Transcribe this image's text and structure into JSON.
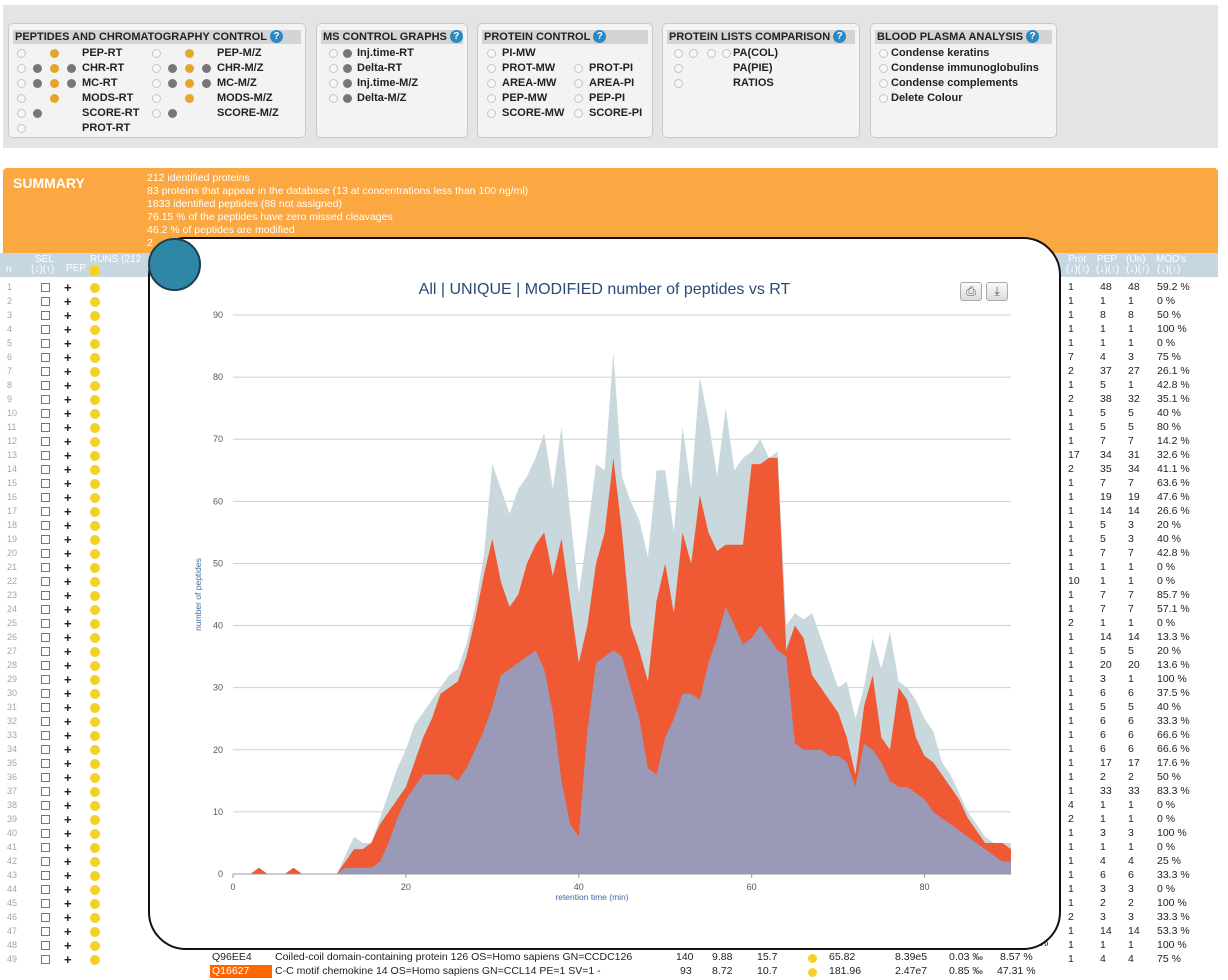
{
  "panels": {
    "pep_chrom": {
      "title": "PEPTIDES AND CHROMATOGRAPHY CONTROL",
      "left_labels": [
        "PEP-RT",
        "CHR-RT",
        "MC-RT",
        "MODS-RT",
        "SCORE-RT",
        "PROT-RT"
      ],
      "right_labels": [
        "PEP-M/Z",
        "CHR-M/Z",
        "MC-M/Z",
        "MODS-M/Z",
        "SCORE-M/Z"
      ]
    },
    "ms_control": {
      "title": "MS CONTROL GRAPHS",
      "labels": [
        "Inj.time-RT",
        "Delta-RT",
        "Inj.time-M/Z",
        "Delta-M/Z"
      ]
    },
    "protein_control": {
      "title": "PROTEIN CONTROL",
      "left_labels": [
        "PI-MW",
        "PROT-MW",
        "AREA-MW",
        "PEP-MW",
        "SCORE-MW"
      ],
      "right_labels": [
        "PROT-PI",
        "AREA-PI",
        "PEP-PI",
        "SCORE-PI"
      ]
    },
    "lists_comparison": {
      "title": "PROTEIN LISTS COMPARISON",
      "labels": [
        "PA(COL)",
        "PA(PIE)",
        "RATIOS"
      ]
    },
    "blood_plasma": {
      "title": "BLOOD PLASMA ANALYSIS",
      "labels": [
        "Condense keratins",
        "Condense immunoglobulins",
        "Condense complements",
        "Delete Colour"
      ]
    }
  },
  "summary": {
    "title": "SUMMARY",
    "lines": [
      "212 identified proteins",
      "83 proteins that appear in the database (13 at concentrations less than 100 ng/ml)",
      "1833 identified peptides (88 not assigned)",
      "76.15 % of the peptides have zero missed cleavages",
      "46.2 % of peptides are modified",
      "2"
    ]
  },
  "header": {
    "n": "n",
    "sel": "SEL",
    "sel_sort": "(↓)(↑)",
    "pep": "PEP",
    "runs": "RUNS (212",
    "prot": "Prot",
    "pep2": "PEP",
    "un": "(Un)",
    "mods": "MOD's",
    "sort": "(↓)(↑)",
    "sort_mods": "(↓)(↑)"
  },
  "rows": [
    {
      "n": "1",
      "prot": "1",
      "pep": "48",
      "un": "48",
      "mods": "59.2 %"
    },
    {
      "n": "2",
      "prot": "1",
      "pep": "1",
      "un": "1",
      "mods": "0 %"
    },
    {
      "n": "3",
      "prot": "1",
      "pep": "8",
      "un": "8",
      "mods": "50 %"
    },
    {
      "n": "4",
      "prot": "1",
      "pep": "1",
      "un": "1",
      "mods": "100 %"
    },
    {
      "n": "5",
      "prot": "1",
      "pep": "1",
      "un": "1",
      "mods": "0 %"
    },
    {
      "n": "6",
      "prot": "7",
      "pep": "4",
      "un": "3",
      "mods": "75 %"
    },
    {
      "n": "7",
      "prot": "2",
      "pep": "37",
      "un": "27",
      "mods": "26.1 %"
    },
    {
      "n": "8",
      "prot": "1",
      "pep": "5",
      "un": "1",
      "mods": "42.8 %"
    },
    {
      "n": "9",
      "prot": "2",
      "pep": "38",
      "un": "32",
      "mods": "35.1 %"
    },
    {
      "n": "10",
      "prot": "1",
      "pep": "5",
      "un": "5",
      "mods": "40 %"
    },
    {
      "n": "11",
      "prot": "1",
      "pep": "5",
      "un": "5",
      "mods": "80 %"
    },
    {
      "n": "12",
      "prot": "1",
      "pep": "7",
      "un": "7",
      "mods": "14.2 %"
    },
    {
      "n": "13",
      "prot": "17",
      "pep": "34",
      "un": "31",
      "mods": "32.6 %"
    },
    {
      "n": "14",
      "prot": "2",
      "pep": "35",
      "un": "34",
      "mods": "41.1 %"
    },
    {
      "n": "15",
      "prot": "1",
      "pep": "7",
      "un": "7",
      "mods": "63.6 %"
    },
    {
      "n": "16",
      "prot": "1",
      "pep": "19",
      "un": "19",
      "mods": "47.6 %"
    },
    {
      "n": "17",
      "prot": "1",
      "pep": "14",
      "un": "14",
      "mods": "26.6 %"
    },
    {
      "n": "18",
      "prot": "1",
      "pep": "5",
      "un": "3",
      "mods": "20 %"
    },
    {
      "n": "19",
      "prot": "1",
      "pep": "5",
      "un": "3",
      "mods": "40 %"
    },
    {
      "n": "20",
      "prot": "1",
      "pep": "7",
      "un": "7",
      "mods": "42.8 %"
    },
    {
      "n": "21",
      "prot": "1",
      "pep": "1",
      "un": "1",
      "mods": "0 %"
    },
    {
      "n": "22",
      "prot": "10",
      "pep": "1",
      "un": "1",
      "mods": "0 %"
    },
    {
      "n": "23",
      "prot": "1",
      "pep": "7",
      "un": "7",
      "mods": "85.7 %"
    },
    {
      "n": "24",
      "prot": "1",
      "pep": "7",
      "un": "7",
      "mods": "57.1 %"
    },
    {
      "n": "25",
      "prot": "2",
      "pep": "1",
      "un": "1",
      "mods": "0 %"
    },
    {
      "n": "26",
      "prot": "1",
      "pep": "14",
      "un": "14",
      "mods": "13.3 %"
    },
    {
      "n": "27",
      "prot": "1",
      "pep": "5",
      "un": "5",
      "mods": "20 %"
    },
    {
      "n": "28",
      "prot": "1",
      "pep": "20",
      "un": "20",
      "mods": "13.6 %"
    },
    {
      "n": "29",
      "prot": "1",
      "pep": "3",
      "un": "1",
      "mods": "100 %"
    },
    {
      "n": "30",
      "prot": "1",
      "pep": "6",
      "un": "6",
      "mods": "37.5 %"
    },
    {
      "n": "31",
      "prot": "1",
      "pep": "5",
      "un": "5",
      "mods": "40 %"
    },
    {
      "n": "32",
      "prot": "1",
      "pep": "6",
      "un": "6",
      "mods": "33.3 %"
    },
    {
      "n": "33",
      "prot": "1",
      "pep": "6",
      "un": "6",
      "mods": "66.6 %"
    },
    {
      "n": "34",
      "prot": "1",
      "pep": "6",
      "un": "6",
      "mods": "66.6 %"
    },
    {
      "n": "35",
      "prot": "1",
      "pep": "17",
      "un": "17",
      "mods": "17.6 %"
    },
    {
      "n": "36",
      "prot": "1",
      "pep": "2",
      "un": "2",
      "mods": "50 %"
    },
    {
      "n": "37",
      "prot": "1",
      "pep": "33",
      "un": "33",
      "mods": "83.3 %"
    },
    {
      "n": "38",
      "prot": "4",
      "pep": "1",
      "un": "1",
      "mods": "0 %"
    },
    {
      "n": "39",
      "prot": "2",
      "pep": "1",
      "un": "1",
      "mods": "0 %"
    },
    {
      "n": "40",
      "prot": "1",
      "pep": "3",
      "un": "3",
      "mods": "100 %"
    },
    {
      "n": "41",
      "prot": "1",
      "pep": "1",
      "un": "1",
      "mods": "0 %"
    },
    {
      "n": "42",
      "prot": "1",
      "pep": "4",
      "un": "4",
      "mods": "25 %"
    },
    {
      "n": "43",
      "prot": "1",
      "pep": "6",
      "un": "6",
      "mods": "33.3 %"
    },
    {
      "n": "44",
      "prot": "1",
      "pep": "3",
      "un": "3",
      "mods": "0 %"
    },
    {
      "n": "45",
      "prot": "1",
      "pep": "2",
      "un": "2",
      "mods": "100 %"
    },
    {
      "n": "46",
      "prot": "2",
      "pep": "3",
      "un": "3",
      "mods": "33.3 %"
    },
    {
      "n": "47",
      "prot": "1",
      "pep": "14",
      "un": "14",
      "mods": "53.3 %"
    },
    {
      "n": "48",
      "prot": "1",
      "pep": "1",
      "un": "1",
      "mods": "100 %"
    },
    {
      "n": "49",
      "prot": "1",
      "pep": "4",
      "un": "4",
      "mods": "75 %"
    }
  ],
  "bottom_rows": [
    {
      "acc": "Q96EE4",
      "desc": "Coiled-coil domain-containing protein 126 OS=Homo sapiens GN=CCDC126",
      "c1": "140",
      "c2": "9.88",
      "c3": "15.7",
      "c4": "65.82",
      "c5": "8.39e5",
      "c6": "0.03 ‰",
      "c7": "8.57 %",
      "c8": "%"
    },
    {
      "acc": "Q16627",
      "desc": "C-C motif chemokine 14 OS=Homo sapiens GN=CCL14 PE=1 SV=1 -",
      "c1": "93",
      "c2": "8.72",
      "c3": "10.7",
      "c4": "181.96",
      "c5": "2.47e7",
      "c6": "0.85 ‰",
      "c7": "47.31 %"
    }
  ],
  "highlight_color": "#ff6600",
  "chart": {
    "title": "All | UNIQUE | MODIFIED number of peptides vs RT",
    "print_icon": "print-icon",
    "download_icon": "download-icon"
  },
  "chart_data": {
    "type": "area",
    "title": "All | UNIQUE | MODIFIED number of peptides vs RT",
    "xlabel": "retention time (min)",
    "ylabel": "number of peptides",
    "xlim": [
      0,
      90
    ],
    "ylim": [
      0,
      90
    ],
    "xticks": [
      0,
      20,
      40,
      60,
      80
    ],
    "yticks": [
      0,
      10,
      20,
      30,
      40,
      50,
      60,
      70,
      80,
      90
    ],
    "x": [
      0,
      1,
      2,
      3,
      4,
      5,
      6,
      7,
      8,
      9,
      10,
      11,
      12,
      13,
      14,
      15,
      16,
      17,
      18,
      19,
      20,
      21,
      22,
      23,
      24,
      25,
      26,
      27,
      28,
      29,
      30,
      31,
      32,
      33,
      34,
      35,
      36,
      37,
      38,
      39,
      40,
      41,
      42,
      43,
      44,
      45,
      46,
      47,
      48,
      49,
      50,
      51,
      52,
      53,
      54,
      55,
      56,
      57,
      58,
      59,
      60,
      61,
      62,
      63,
      64,
      65,
      66,
      67,
      68,
      69,
      70,
      71,
      72,
      73,
      74,
      75,
      76,
      77,
      78,
      79,
      80,
      81,
      82,
      83,
      84,
      85,
      86,
      87,
      88,
      89,
      90
    ],
    "series": [
      {
        "name": "All",
        "color": "#c9d8dc",
        "values": [
          0,
          0,
          0,
          1,
          0,
          0,
          0,
          1,
          0,
          0,
          0,
          0,
          0,
          3,
          6,
          5,
          5,
          9,
          13,
          17,
          20,
          24,
          26,
          28,
          30,
          32,
          33,
          37,
          43,
          51,
          66,
          62,
          58,
          62,
          64,
          67,
          71,
          62,
          72,
          58,
          45,
          55,
          66,
          65,
          84,
          64,
          60,
          57,
          51,
          65,
          65,
          55,
          72,
          62,
          80,
          73,
          64,
          75,
          65,
          67,
          68,
          70,
          67,
          68,
          40,
          42,
          41,
          42,
          38,
          34,
          30,
          31,
          25,
          30,
          38,
          33,
          39,
          31,
          30,
          28,
          25,
          23,
          18,
          16,
          13,
          10,
          8,
          6,
          5,
          5,
          5
        ]
      },
      {
        "name": "UNIQUE",
        "color": "#ef5a35",
        "values": [
          0,
          0,
          0,
          1,
          0,
          0,
          0,
          1,
          0,
          0,
          0,
          0,
          0,
          2,
          4,
          4,
          5,
          8,
          10,
          12,
          14,
          18,
          22,
          25,
          29,
          30,
          31,
          35,
          41,
          48,
          54,
          47,
          43,
          45,
          50,
          53,
          55,
          48,
          54,
          44,
          34,
          40,
          50,
          55,
          67,
          55,
          40,
          36,
          31,
          44,
          50,
          42,
          55,
          50,
          61,
          55,
          52,
          53,
          53,
          53,
          66,
          66,
          67,
          67,
          36,
          40,
          38,
          32,
          30,
          28,
          26,
          22,
          16,
          27,
          32,
          22,
          20,
          30,
          28,
          22,
          19,
          18,
          16,
          14,
          12,
          9,
          7,
          5,
          5,
          5,
          4
        ]
      },
      {
        "name": "MODIFIED",
        "color": "#9a99b7",
        "values": [
          0,
          0,
          0,
          0,
          0,
          0,
          0,
          0,
          0,
          0,
          0,
          0,
          0,
          1,
          1,
          1,
          1,
          2,
          5,
          9,
          12,
          14,
          16,
          16,
          16,
          16,
          15,
          17,
          20,
          23,
          27,
          32,
          33,
          34,
          35,
          36,
          33,
          26,
          15,
          8,
          6,
          23,
          34,
          35,
          36,
          35,
          30,
          25,
          17,
          16,
          22,
          25,
          29,
          29,
          28,
          34,
          38,
          43,
          40,
          37,
          38,
          40,
          38,
          36,
          35,
          21,
          20,
          20,
          20,
          19,
          19,
          18,
          14,
          21,
          20,
          18,
          15,
          14,
          14,
          13,
          12,
          10,
          9,
          8,
          7,
          6,
          5,
          4,
          3,
          2,
          2
        ]
      }
    ]
  }
}
